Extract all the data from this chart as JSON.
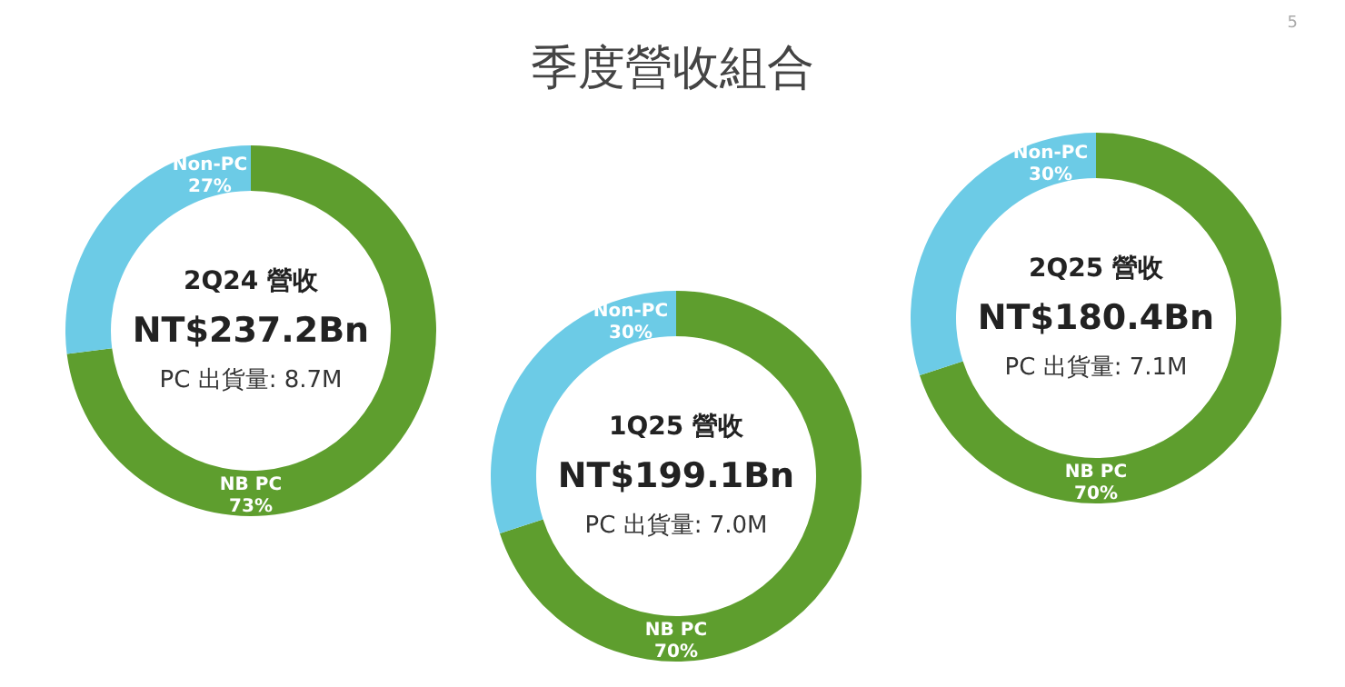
{
  "chart_data": [
    {
      "type": "other",
      "title": "季度營收組合",
      "annotations": [
        "5"
      ]
    },
    {
      "type": "donut",
      "title": "2Q24 營收",
      "subtitle": "NT$237.2Bn",
      "annotations": [
        "PC 出貨量: 8.7M"
      ],
      "categories": [
        "NB PC",
        "Non-PC"
      ],
      "values": [
        73,
        27
      ],
      "value_labels": [
        "73%",
        "27%"
      ],
      "colors": [
        "#5e9e2e",
        "#6ccbe6"
      ],
      "legend": false
    },
    {
      "type": "donut",
      "title": "1Q25 營收",
      "subtitle": "NT$199.1Bn",
      "annotations": [
        "PC 出貨量: 7.0M"
      ],
      "categories": [
        "NB PC",
        "Non-PC"
      ],
      "values": [
        70,
        30
      ],
      "value_labels": [
        "70%",
        "30%"
      ],
      "colors": [
        "#5e9e2e",
        "#6ccbe6"
      ],
      "legend": false
    },
    {
      "type": "donut",
      "title": "2Q25 營收",
      "subtitle": "NT$180.4Bn",
      "annotations": [
        "PC 出貨量: 7.1M"
      ],
      "categories": [
        "NB PC",
        "Non-PC"
      ],
      "values": [
        70,
        30
      ],
      "value_labels": [
        "70%",
        "30%"
      ],
      "colors": [
        "#5e9e2e",
        "#6ccbe6"
      ],
      "legend": false
    }
  ]
}
